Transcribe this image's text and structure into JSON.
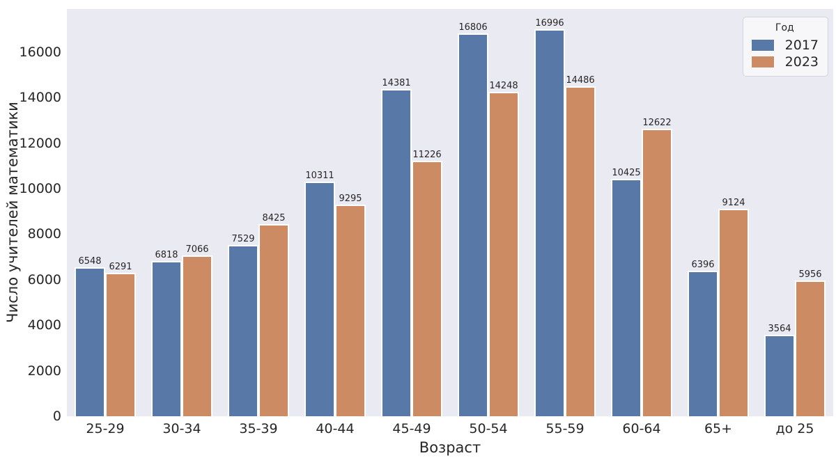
{
  "chart_data": {
    "type": "bar",
    "title": "",
    "xlabel": "Возраст",
    "ylabel": "Число учителей математики",
    "categories": [
      "до 25",
      "25-29",
      "30-34",
      "35-39",
      "40-44",
      "45-49",
      "50-54",
      "55-59",
      "60-64",
      "65+"
    ],
    "series": [
      {
        "name": "2017",
        "color": "#5878a8",
        "values": [
          3564,
          6548,
          6818,
          7529,
          10311,
          14381,
          16806,
          16996,
          10425,
          6396
        ]
      },
      {
        "name": "2023",
        "color": "#cd8b63",
        "values": [
          5956,
          6291,
          7066,
          8425,
          9295,
          11226,
          14248,
          14486,
          12622,
          9124
        ]
      }
    ],
    "legend_title": "Год",
    "legend_position": "upper right",
    "ylim": [
      0,
      17885
    ],
    "yticks": [
      0,
      2000,
      4000,
      6000,
      8000,
      10000,
      12000,
      14000,
      16000
    ],
    "grid": false,
    "bar_labels": true,
    "colors": {
      "plot_bg": "#eaeaf2",
      "fig_bg": "#ffffff",
      "text": "#262626",
      "bar_edge": "#ffffff"
    }
  }
}
